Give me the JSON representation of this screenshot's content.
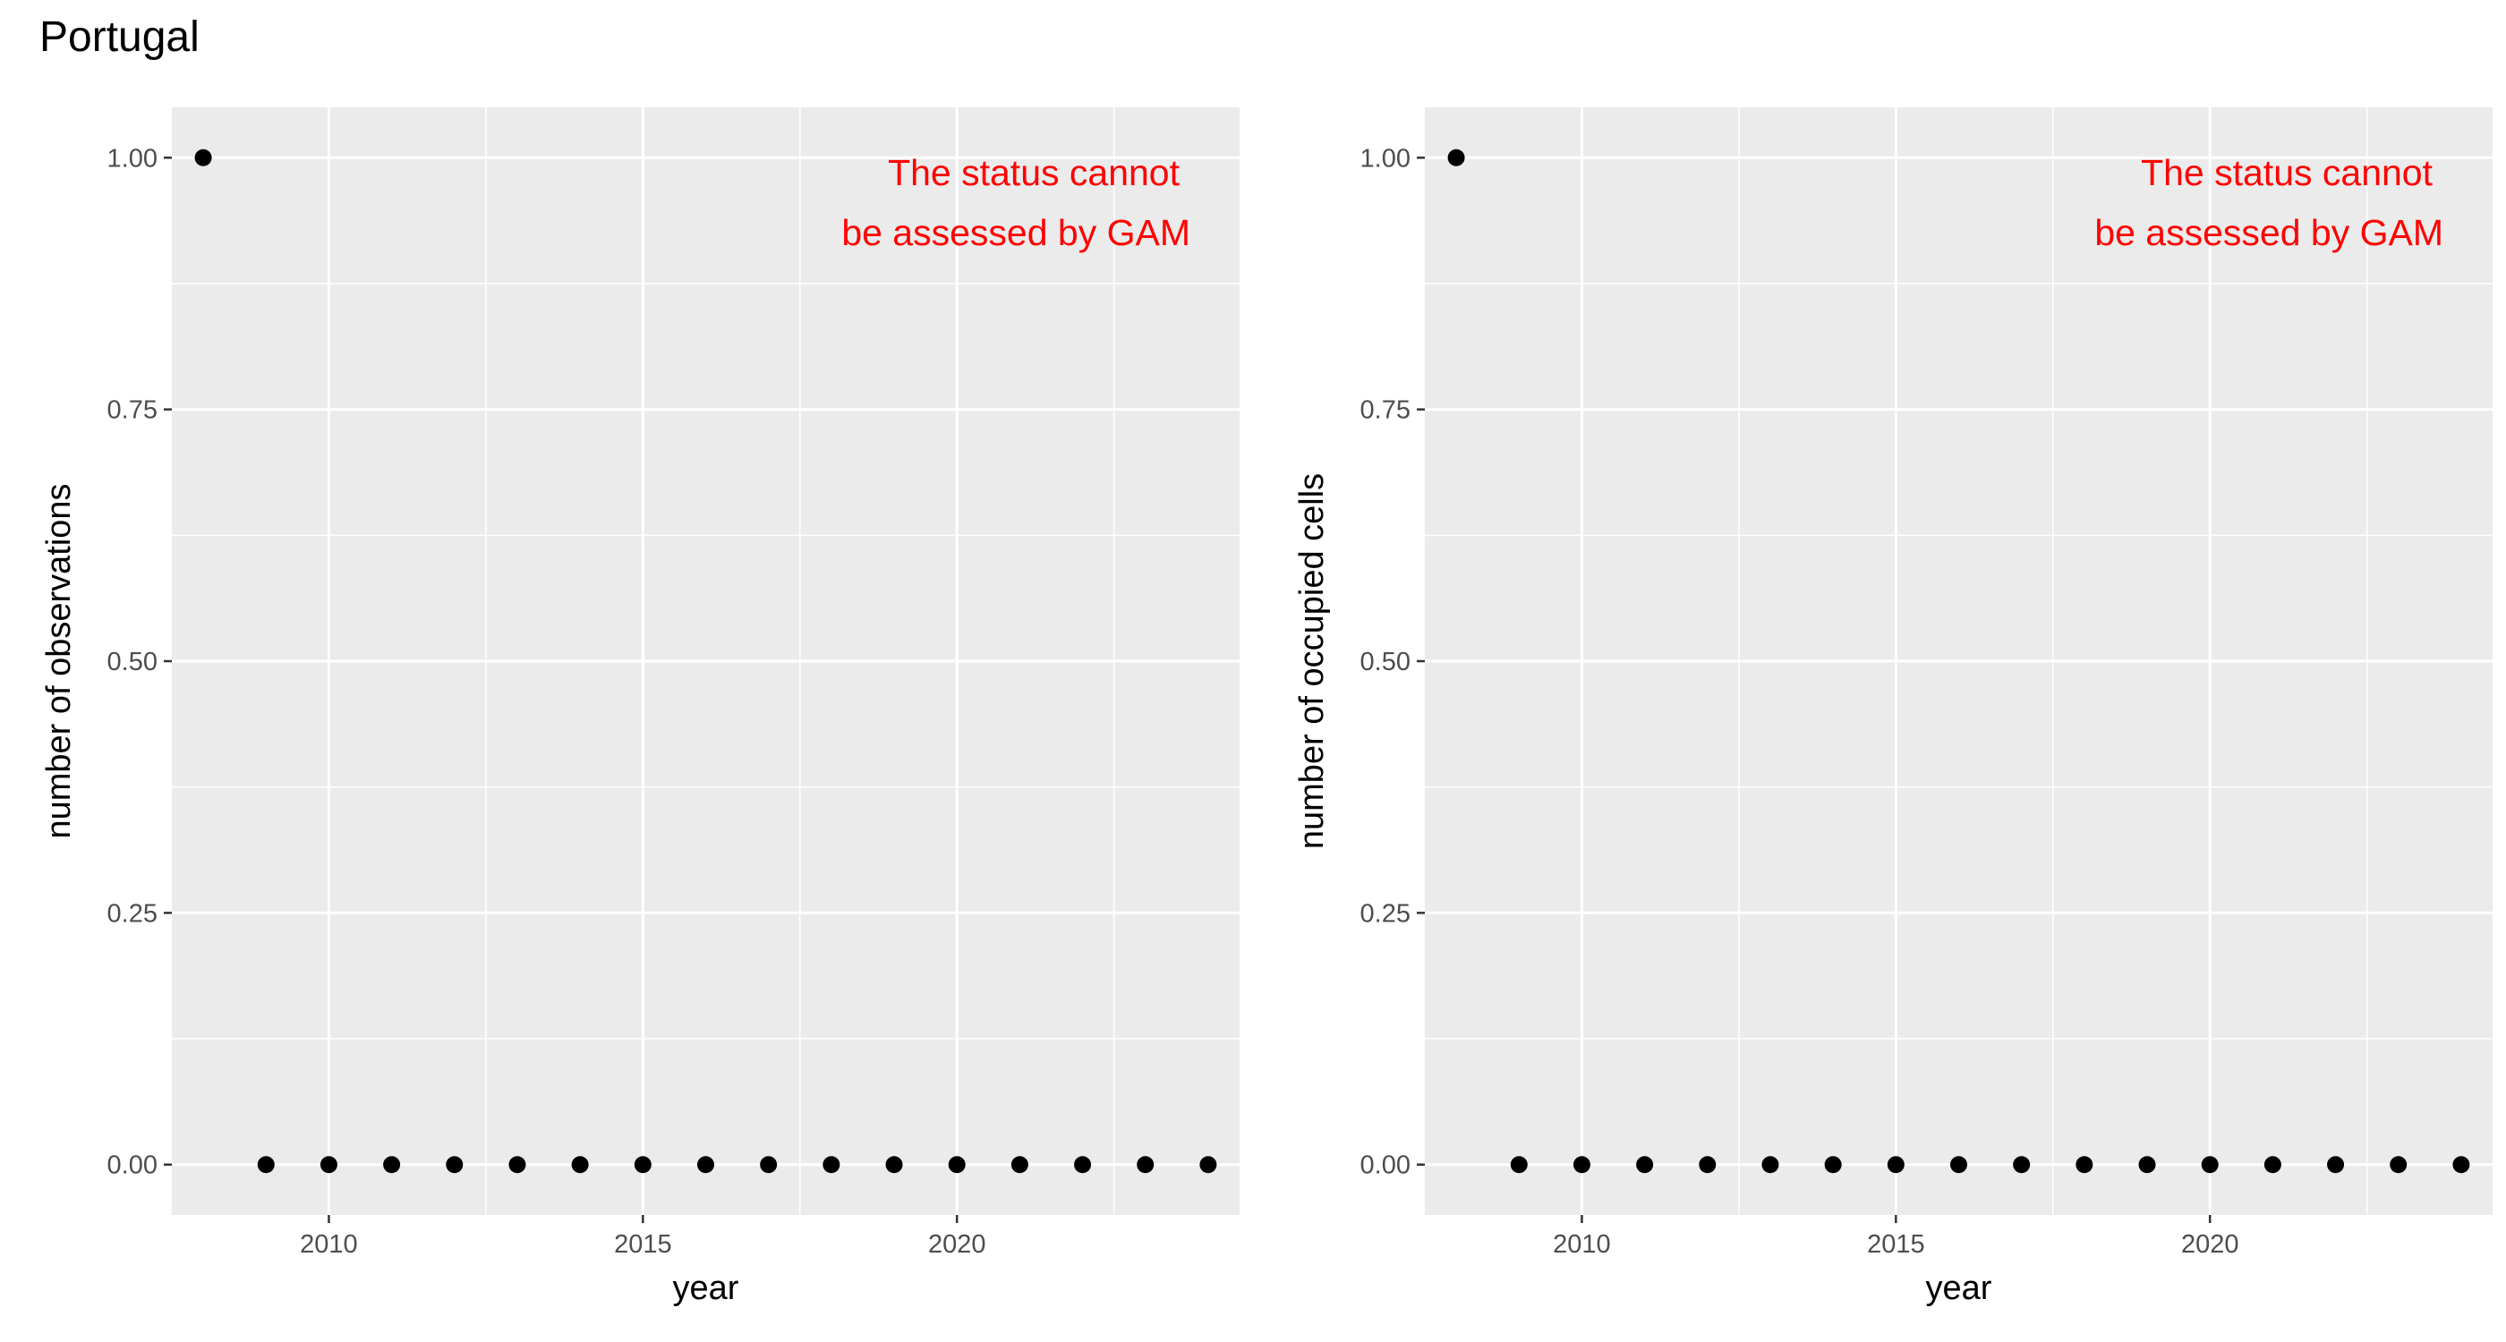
{
  "page": {
    "title": "Portugal"
  },
  "colors": {
    "panel_bg": "#ebebeb",
    "grid": "#ffffff",
    "point": "#000000",
    "note": "#ff0000",
    "tick_text": "#4d4d4d"
  },
  "chart_data": [
    {
      "type": "scatter",
      "title": "",
      "xlabel": "year",
      "ylabel": "number of observations",
      "xlim": [
        2007.5,
        2024.5
      ],
      "ylim": [
        -0.05,
        1.05
      ],
      "x_ticks": [
        2010,
        2015,
        2020
      ],
      "x_tick_labels": [
        "2010",
        "2015",
        "2020"
      ],
      "y_ticks": [
        0,
        0.25,
        0.5,
        0.75,
        1
      ],
      "y_tick_labels": [
        "0.00",
        "0.25",
        "0.50",
        "0.75",
        "1.00"
      ],
      "grid": true,
      "annotation": [
        "The status cannot",
        "be assessed by GAM"
      ],
      "series": [
        {
          "x": [
            2008,
            2009,
            2010,
            2011,
            2012,
            2013,
            2014,
            2015,
            2016,
            2017,
            2018,
            2019,
            2020,
            2021,
            2022,
            2023,
            2024
          ],
          "y": [
            1,
            0,
            0,
            0,
            0,
            0,
            0,
            0,
            0,
            0,
            0,
            0,
            0,
            0,
            0,
            0,
            0
          ]
        }
      ]
    },
    {
      "type": "scatter",
      "title": "",
      "xlabel": "year",
      "ylabel": "number of occupied cells",
      "xlim": [
        2007.5,
        2024.5
      ],
      "ylim": [
        -0.05,
        1.05
      ],
      "x_ticks": [
        2010,
        2015,
        2020
      ],
      "x_tick_labels": [
        "2010",
        "2015",
        "2020"
      ],
      "y_ticks": [
        0,
        0.25,
        0.5,
        0.75,
        1
      ],
      "y_tick_labels": [
        "0.00",
        "0.25",
        "0.50",
        "0.75",
        "1.00"
      ],
      "grid": true,
      "annotation": [
        "The status cannot",
        "be assessed by GAM"
      ],
      "series": [
        {
          "x": [
            2008,
            2009,
            2010,
            2011,
            2012,
            2013,
            2014,
            2015,
            2016,
            2017,
            2018,
            2019,
            2020,
            2021,
            2022,
            2023,
            2024
          ],
          "y": [
            1,
            0,
            0,
            0,
            0,
            0,
            0,
            0,
            0,
            0,
            0,
            0,
            0,
            0,
            0,
            0,
            0
          ]
        }
      ]
    }
  ]
}
